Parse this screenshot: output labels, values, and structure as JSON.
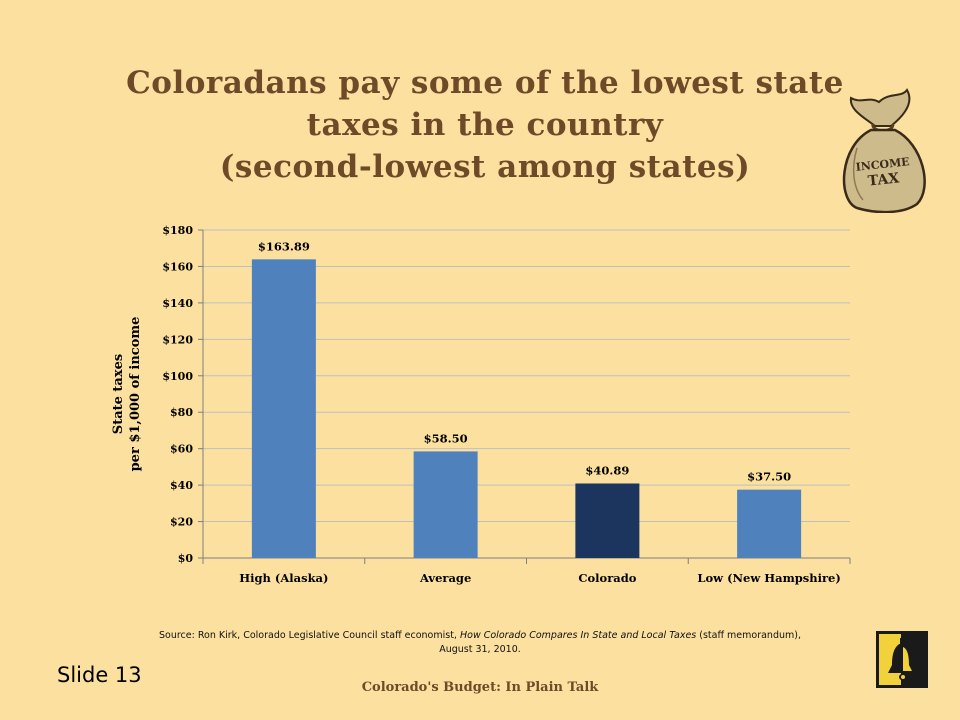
{
  "slide": {
    "title_lines": [
      "Coloradans pay some of the lowest state",
      "taxes in the country",
      "(second-lowest among states)"
    ],
    "bag_label_line1": "INCOME",
    "bag_label_line2": "TAX",
    "source_prefix": "Source: Ron Kirk, Colorado Legislative Council staff economist, ",
    "source_title": "How Colorado Compares In State and Local Taxes",
    "source_suffix": " (staff memorandum), August 31, 2010.",
    "slide_number": "Slide 13",
    "footer": "Colorado's Budget: In Plain Talk"
  },
  "colors": {
    "background": "#fbe0a0",
    "title": "#6e4a28",
    "bar_default": "#4f81bd",
    "bar_highlight": "#1c355e"
  },
  "chart_data": {
    "type": "bar",
    "categories": [
      "High (Alaska)",
      "Average",
      "Colorado",
      "Low (New Hampshire)"
    ],
    "values": [
      163.89,
      58.5,
      40.89,
      37.5
    ],
    "data_labels": [
      "$163.89",
      "$58.50",
      "$40.89",
      "$37.50"
    ],
    "highlight_index": 2,
    "ylabel_lines": [
      "State taxes",
      "per $1,000 of income"
    ],
    "xlabel": "",
    "ylim": [
      0,
      180
    ],
    "yticks": [
      0,
      20,
      40,
      60,
      80,
      100,
      120,
      140,
      160,
      180
    ],
    "ytick_labels": [
      "$0",
      "$20",
      "$40",
      "$60",
      "$80",
      "$100",
      "$120",
      "$140",
      "$160",
      "$180"
    ],
    "grid": true,
    "legend": "none"
  }
}
